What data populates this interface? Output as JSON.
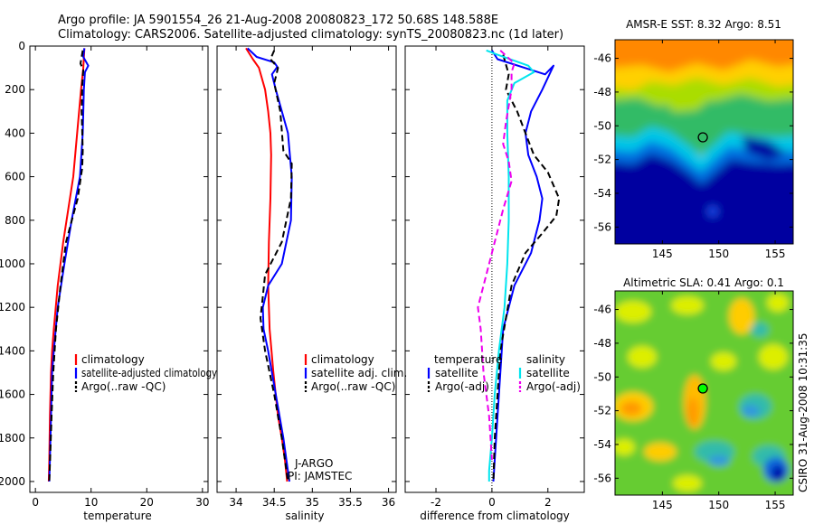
{
  "header": {
    "line1": "Argo profile: JA 5901554_26 21-Aug-2008 20080823_172 50.68S 148.588E",
    "line2": "Climatology: CARS2006. Satellite-adjusted climatology: synTS_20080823.nc (1d later)"
  },
  "side_stamp": "CSIRO 31-Aug-2008 10:31:35",
  "colors": {
    "climatology": "#ff0000",
    "satellite": "#0000ff",
    "argo": "#000000",
    "sat_salinity": "#00e5ee",
    "argo_salinity": "#ee00ee",
    "frame": "#000000"
  },
  "chart_data": [
    {
      "type": "line",
      "xlabel": "temperature",
      "xlim": [
        -1,
        31
      ],
      "ylim": [
        2050,
        0
      ],
      "xticks": [
        0,
        10,
        20,
        30
      ],
      "yticks": [
        0,
        200,
        400,
        600,
        800,
        1000,
        1200,
        1400,
        1600,
        1800,
        2000
      ],
      "legend": {
        "placement": "lower-right",
        "entries": [
          "climatology",
          "satellite-adjusted climatology",
          "Argo(..raw -QC)"
        ]
      },
      "series": [
        {
          "name": "climatology",
          "color": "#ff0000",
          "dash": "solid",
          "x": [
            8.8,
            8.6,
            8.2,
            7.5,
            6.8,
            6.2,
            5.0,
            4.0,
            3.3,
            3.0,
            2.8,
            2.6,
            2.5,
            2.4
          ],
          "y": [
            10,
            100,
            200,
            400,
            600,
            700,
            900,
            1100,
            1300,
            1400,
            1500,
            1700,
            1900,
            2000
          ]
        },
        {
          "name": "satellite-adjusted climatology",
          "color": "#0000ff",
          "dash": "solid",
          "x": [
            8.8,
            8.6,
            9.5,
            8.9,
            8.7,
            8.5,
            8.0,
            6.5,
            5.2,
            4.0,
            3.3,
            3.0,
            2.8,
            2.6,
            2.5
          ],
          "y": [
            10,
            50,
            90,
            120,
            200,
            400,
            600,
            800,
            1000,
            1200,
            1400,
            1500,
            1700,
            1900,
            2000
          ]
        },
        {
          "name": "Argo(..raw -QC)",
          "color": "#000000",
          "dash": "dashed",
          "x": [
            8.5,
            8.1,
            8.6,
            8.4,
            8.3,
            8.5,
            8.4,
            7.6,
            5.5,
            4.5,
            3.7,
            3.2,
            2.9,
            2.7,
            2.5
          ],
          "y": [
            20,
            80,
            110,
            180,
            300,
            480,
            560,
            700,
            900,
            1100,
            1300,
            1500,
            1700,
            1850,
            2000
          ]
        }
      ],
      "annotations": []
    },
    {
      "type": "line",
      "xlabel": "salinity",
      "xlim": [
        33.75,
        36.1
      ],
      "ylim": [
        2050,
        0
      ],
      "xticks": [
        34,
        34.5,
        35,
        35.5,
        36
      ],
      "legend": {
        "placement": "lower-right",
        "entries": [
          "climatology",
          "satellite adj. clim.",
          "Argo(..raw -QC)"
        ]
      },
      "series": [
        {
          "name": "climatology",
          "color": "#ff0000",
          "dash": "solid",
          "x": [
            34.13,
            34.22,
            34.3,
            34.38,
            34.42,
            34.45,
            34.46,
            34.45,
            34.43,
            34.42,
            34.44,
            34.49,
            34.55,
            34.6,
            34.64,
            34.67
          ],
          "y": [
            10,
            60,
            100,
            200,
            300,
            400,
            500,
            700,
            900,
            1100,
            1300,
            1500,
            1700,
            1800,
            1900,
            2000
          ]
        },
        {
          "name": "satellite adj. clim.",
          "color": "#0000ff",
          "dash": "solid",
          "x": [
            34.15,
            34.27,
            34.5,
            34.54,
            34.47,
            34.52,
            34.68,
            34.73,
            34.72,
            34.6,
            34.42,
            34.35,
            34.36,
            34.42,
            34.52,
            34.62,
            34.7
          ],
          "y": [
            10,
            50,
            75,
            95,
            130,
            200,
            400,
            600,
            800,
            1000,
            1100,
            1200,
            1300,
            1400,
            1600,
            1800,
            2000
          ]
        },
        {
          "name": "Argo(..raw -QC)",
          "color": "#000000",
          "dash": "dashed",
          "x": [
            34.5,
            34.45,
            34.55,
            34.5,
            34.58,
            34.62,
            34.73,
            34.72,
            34.6,
            34.38,
            34.35,
            34.32,
            34.38,
            34.5,
            34.6,
            34.68
          ],
          "y": [
            20,
            60,
            100,
            170,
            300,
            480,
            540,
            700,
            900,
            1050,
            1150,
            1250,
            1400,
            1600,
            1800,
            2000
          ]
        }
      ],
      "annotations": [
        "J-ARGO",
        "PI: JAMSTEC"
      ]
    },
    {
      "type": "line",
      "xlabel": "difference from climatology",
      "xlim": [
        -3.1,
        3.3
      ],
      "ylim": [
        2050,
        0
      ],
      "xticks": [
        -2,
        0,
        2
      ],
      "legend": {
        "placement": "lower-center",
        "groups": [
          "temperature",
          "salinity"
        ],
        "entries": [
          "satellite",
          "Argo(-adj)",
          "satellite",
          "Argo(-adj)"
        ]
      },
      "series": [
        {
          "name": "temperature satellite",
          "color": "#0000ff",
          "dash": "solid",
          "x": [
            0,
            0.2,
            1.9,
            2.2,
            1.8,
            1.4,
            1.2,
            1.3,
            1.6,
            1.8,
            1.7,
            1.4,
            0.8,
            0.6,
            0.4,
            0.3,
            0.2,
            0.1,
            0.05
          ],
          "y": [
            20,
            60,
            130,
            90,
            200,
            300,
            400,
            500,
            600,
            700,
            800,
            950,
            1100,
            1200,
            1300,
            1500,
            1700,
            1900,
            2000
          ]
        },
        {
          "name": "temperature Argo(-adj)",
          "color": "#000000",
          "dash": "dashed",
          "x": [
            0.4,
            0.6,
            0.5,
            0.9,
            1.2,
            1.5,
            2.0,
            2.4,
            2.3,
            1.8,
            1.2,
            0.7,
            0.5,
            0.3,
            0.2,
            0.1,
            0.05
          ],
          "y": [
            40,
            130,
            200,
            300,
            400,
            500,
            580,
            700,
            780,
            860,
            950,
            1100,
            1250,
            1400,
            1600,
            1800,
            2000
          ]
        },
        {
          "name": "salinity satellite",
          "color": "#00e5ee",
          "dash": "solid",
          "x": [
            -0.2,
            0.2,
            1.3,
            1.5,
            0.8,
            0.55,
            0.55,
            0.6,
            0.6,
            0.55,
            0.45,
            0.25,
            0.1,
            0.0,
            -0.1,
            -0.1
          ],
          "y": [
            20,
            40,
            90,
            120,
            170,
            250,
            400,
            600,
            800,
            1000,
            1200,
            1400,
            1600,
            1800,
            1950,
            2000
          ]
        },
        {
          "name": "salinity Argo(-adj)",
          "color": "#ee00ee",
          "dash": "dashed",
          "x": [
            0.3,
            0.8,
            0.7,
            0.7,
            0.5,
            0.4,
            0.6,
            0.7,
            0.4,
            0.0,
            -0.3,
            -0.5,
            -0.4,
            -0.3,
            -0.1,
            0.0
          ],
          "y": [
            20,
            80,
            120,
            200,
            350,
            450,
            530,
            620,
            750,
            950,
            1100,
            1200,
            1300,
            1500,
            1700,
            1900
          ]
        }
      ],
      "annotations": []
    },
    {
      "type": "heatmap",
      "title": "AMSR-E SST: 8.32  Argo: 8.51",
      "xticks": [
        145,
        150,
        155
      ],
      "yticks": [
        -46,
        -48,
        -50,
        -52,
        -54,
        -56
      ],
      "xlim": [
        140.8,
        156.6
      ],
      "ylim": [
        -57,
        -44.9
      ],
      "marker": {
        "lon": 148.588,
        "lat": -50.68,
        "color": "#000000"
      }
    },
    {
      "type": "heatmap",
      "title": "Altimetric SLA: 0.41  Argo: 0.1",
      "xticks": [
        145,
        150,
        155
      ],
      "yticks": [
        -46,
        -48,
        -50,
        -52,
        -54,
        -56
      ],
      "xlim": [
        140.8,
        156.6
      ],
      "ylim": [
        -57,
        -44.9
      ],
      "marker": {
        "lon": 148.588,
        "lat": -50.68,
        "color": "#00ff00"
      }
    }
  ]
}
